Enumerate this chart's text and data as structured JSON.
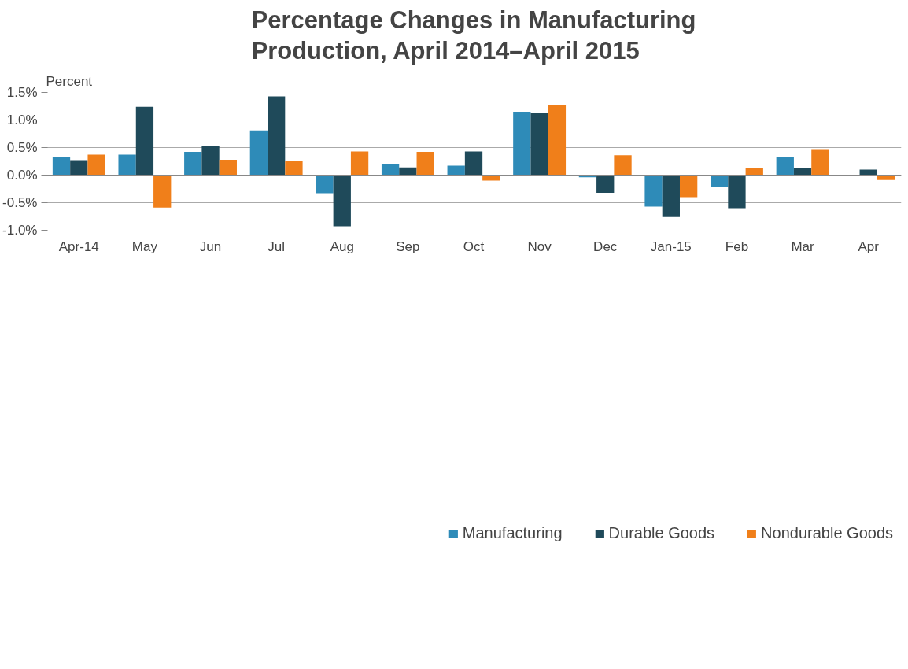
{
  "chart_data": {
    "type": "bar",
    "title": "Percentage Changes in Manufacturing Production, April 2014–April 2015",
    "ylabel": "Percent",
    "categories": [
      "Apr-14",
      "May",
      "Jun",
      "Jul",
      "Aug",
      "Sep",
      "Oct",
      "Nov",
      "Dec",
      "Jan-15",
      "Feb",
      "Mar",
      "Apr"
    ],
    "series": [
      {
        "name": "Manufacturing",
        "color": "#2e8bb8",
        "values": [
          0.33,
          0.37,
          0.42,
          0.81,
          -0.33,
          0.2,
          0.17,
          1.15,
          -0.04,
          -0.57,
          -0.22,
          0.33,
          0
        ]
      },
      {
        "name": "Durable Goods",
        "color": "#1f4a5a",
        "values": [
          0.27,
          1.24,
          0.53,
          1.43,
          -0.93,
          0.14,
          0.43,
          1.13,
          -0.32,
          -0.76,
          -0.6,
          0.12,
          0.1
        ]
      },
      {
        "name": "Nondurable Goods",
        "color": "#f07f1a",
        "values": [
          0.37,
          -0.59,
          0.28,
          0.25,
          0.43,
          0.42,
          -0.1,
          1.28,
          0.36,
          -0.4,
          0.13,
          0.47,
          -0.09
        ]
      }
    ],
    "ylim": [
      -1.0,
      1.5
    ],
    "yticks": [
      {
        "value": -1.0,
        "label": "-1.0%"
      },
      {
        "value": -0.5,
        "label": "-0.5%"
      },
      {
        "value": 0,
        "label": "0.0%"
      },
      {
        "value": 0.5,
        "label": "0.5%"
      },
      {
        "value": 1.0,
        "label": "1.0%"
      },
      {
        "value": 1.5,
        "label": "1.5%"
      }
    ],
    "grid": "y",
    "legend": "bottom"
  }
}
